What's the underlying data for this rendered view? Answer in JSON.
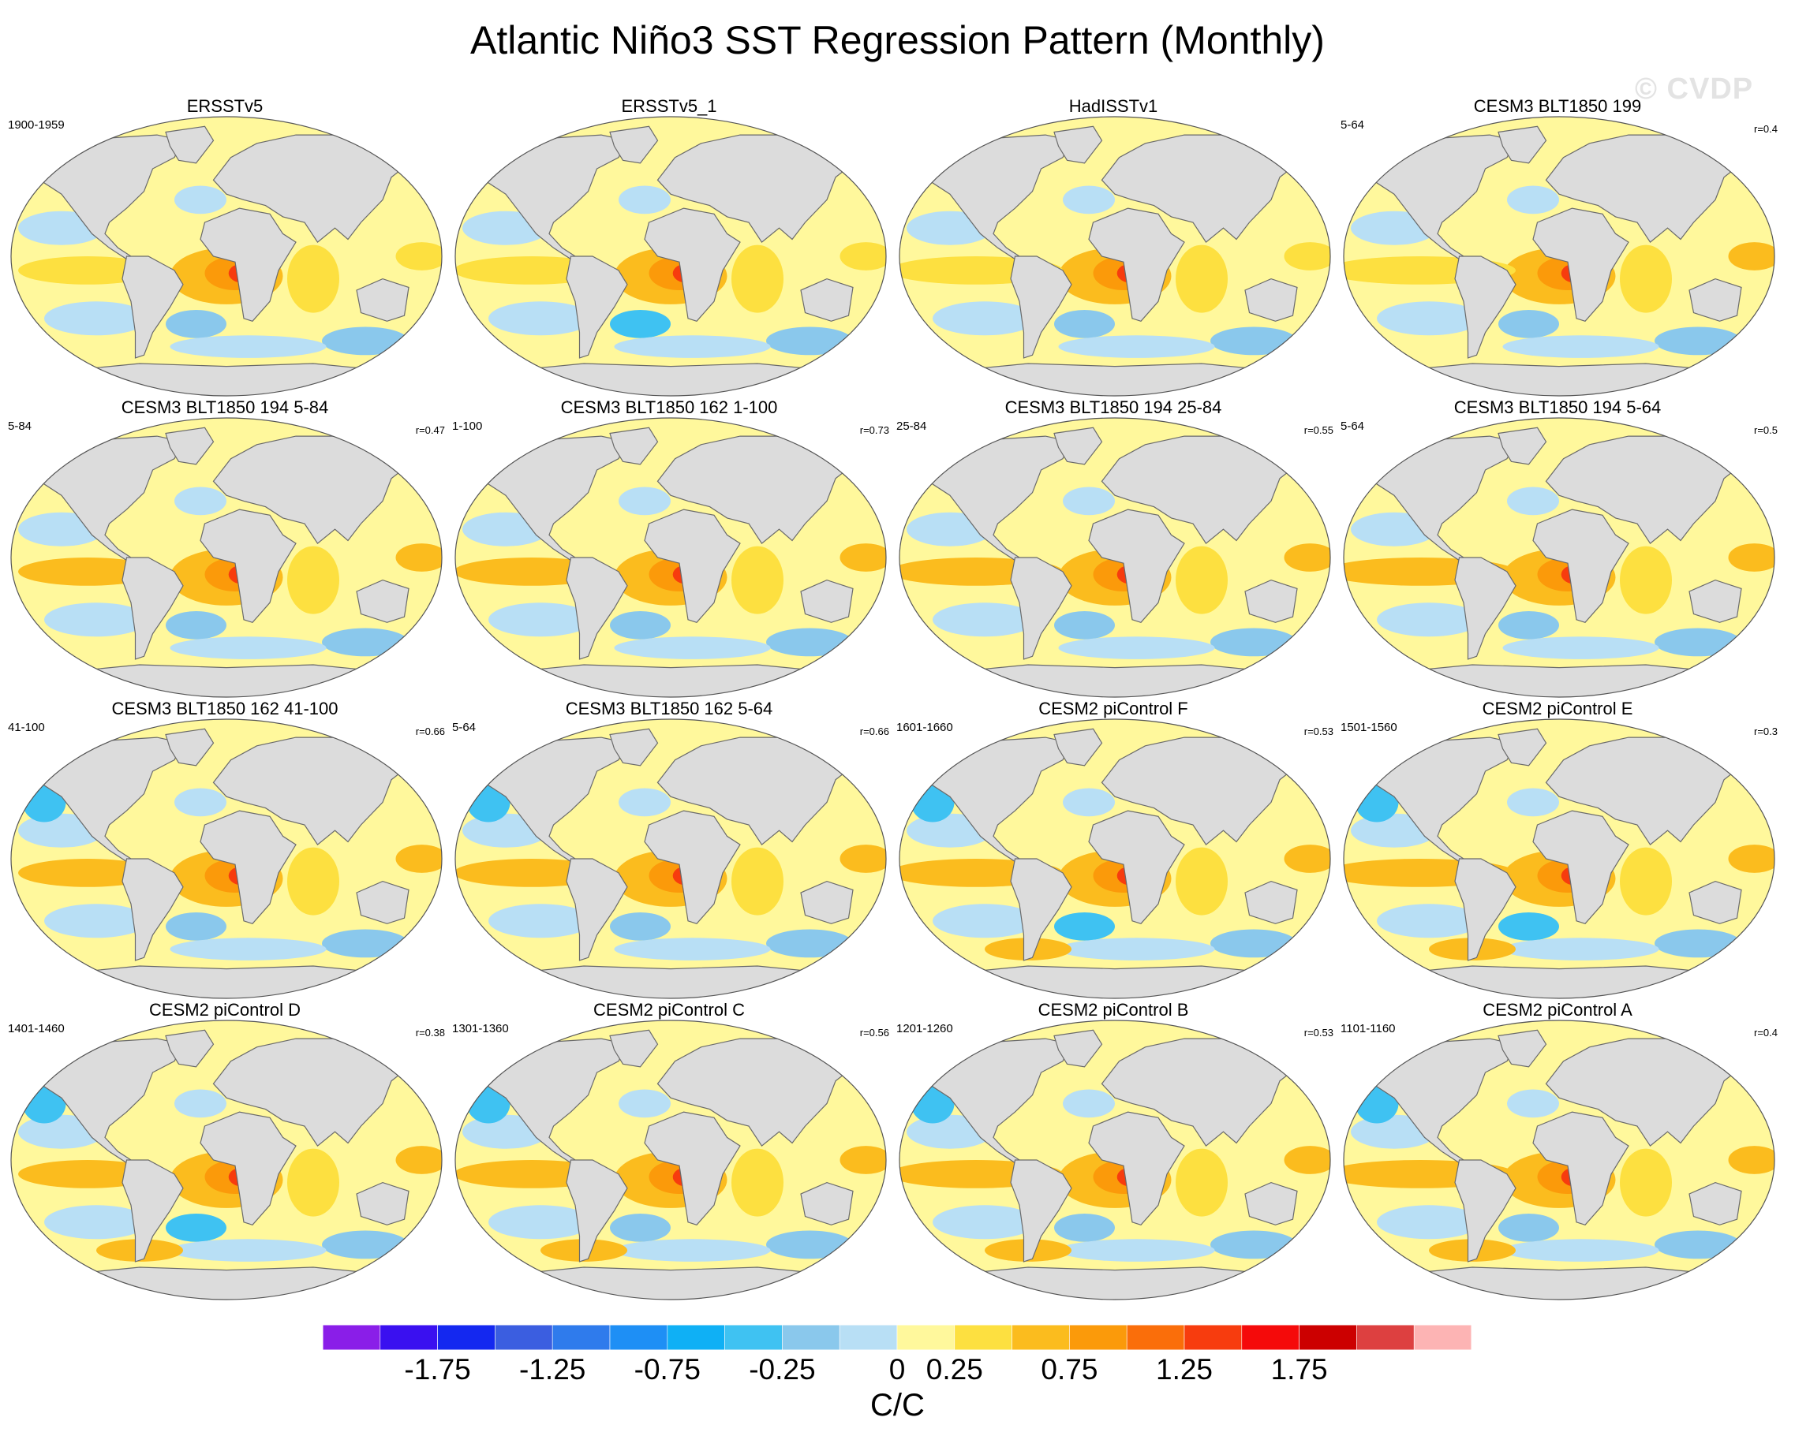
{
  "title": "Atlantic Niño3 SST Regression Pattern (Monthly)",
  "watermark": "© CVDP",
  "panels": [
    {
      "title": "ERSSTv5",
      "years": "1900-1959",
      "r": ""
    },
    {
      "title": "ERSSTv5_1",
      "years": "",
      "r": ""
    },
    {
      "title": "HadISSTv1",
      "years": "",
      "r": ""
    },
    {
      "title": "CESM3 BLT1850 199",
      "years": "5-64",
      "r": "r=0.4"
    },
    {
      "title": "CESM3 BLT1850 194 5-84",
      "years": "5-84",
      "r": "r=0.47"
    },
    {
      "title": "CESM3 BLT1850 162 1-100",
      "years": "1-100",
      "r": "r=0.73"
    },
    {
      "title": "CESM3 BLT1850 194 25-84",
      "years": "25-84",
      "r": "r=0.55"
    },
    {
      "title": "CESM3 BLT1850 194 5-64",
      "years": "5-64",
      "r": "r=0.5"
    },
    {
      "title": "CESM3 BLT1850 162 41-100",
      "years": "41-100",
      "r": "r=0.66"
    },
    {
      "title": "CESM3 BLT1850 162 5-64",
      "years": "5-64",
      "r": "r=0.66"
    },
    {
      "title": "CESM2 piControl F",
      "years": "1601-1660",
      "r": "r=0.53"
    },
    {
      "title": "CESM2 piControl E",
      "years": "1501-1560",
      "r": "r=0.3"
    },
    {
      "title": "CESM2 piControl D",
      "years": "1401-1460",
      "r": "r=0.38"
    },
    {
      "title": "CESM2 piControl C",
      "years": "1301-1360",
      "r": "r=0.56"
    },
    {
      "title": "CESM2 piControl B",
      "years": "1201-1260",
      "r": "r=0.53"
    },
    {
      "title": "CESM2 piControl A",
      "years": "1101-1160",
      "r": "r=0.4"
    }
  ],
  "colorbar": {
    "colors": [
      "#8a1ee8",
      "#3a10f0",
      "#1428f0",
      "#3b5ee0",
      "#2f7bec",
      "#1e8ff5",
      "#0fb0f5",
      "#3fc2f2",
      "#8ac8ec",
      "#b8dff5",
      "#fff89c",
      "#fde040",
      "#fbbc1e",
      "#fb9a0a",
      "#fa6e0a",
      "#f73c0e",
      "#f50a0a",
      "#cc0000",
      "#dd4040",
      "#fdb4b4"
    ],
    "tick_labels": [
      "-1.75",
      "-1.25",
      "-0.75",
      "-0.25",
      "0",
      "0.25",
      "0.75",
      "1.25",
      "1.75"
    ],
    "units": "C/C"
  },
  "map_colors": {
    "ocean_base": "#fff89c",
    "land": "#dcdcdc",
    "land_outline": "#6a6a6a",
    "light_blue": "#b8dff5",
    "mid_blue": "#8ac8ec",
    "blue": "#3fc2f2",
    "yellow": "#fde040",
    "gold": "#fbbc1e",
    "orange": "#fb9a0a",
    "dark_orange": "#fa6e0a",
    "red": "#f73c0e"
  }
}
